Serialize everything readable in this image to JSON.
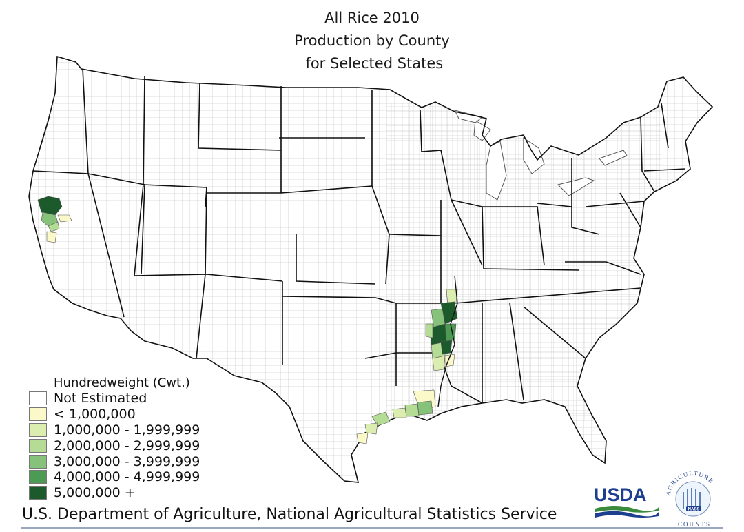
{
  "title": {
    "line1": "All Rice 2010",
    "line2": "Production by County",
    "line3": " for Selected States"
  },
  "legend": {
    "title": "Hundredweight (Cwt.)",
    "items": [
      {
        "label": "Not Estimated",
        "color": "#ffffff"
      },
      {
        "label": "< 1,000,000",
        "color": "#fbf8c9"
      },
      {
        "label": "1,000,000 - 1,999,999",
        "color": "#dcedb0"
      },
      {
        "label": "2,000,000 - 2,999,999",
        "color": "#b5dc94"
      },
      {
        "label": "3,000,000 - 3,999,999",
        "color": "#86c27a"
      },
      {
        "label": "4,000,000 - 4,999,999",
        "color": "#4d9a55"
      },
      {
        "label": "5,000,000 +",
        "color": "#1c5a2c"
      }
    ]
  },
  "footer": {
    "agency": "U.S. Department of Agriculture, National Agricultural Statistics Service"
  },
  "logos": {
    "usda_text": "USDA",
    "nass_ring_text": "AGRICULTURE COUNTS",
    "nass_badge": "NASS",
    "usda_color": "#1d3f8f",
    "usda_green": "#3a8a3c"
  }
}
